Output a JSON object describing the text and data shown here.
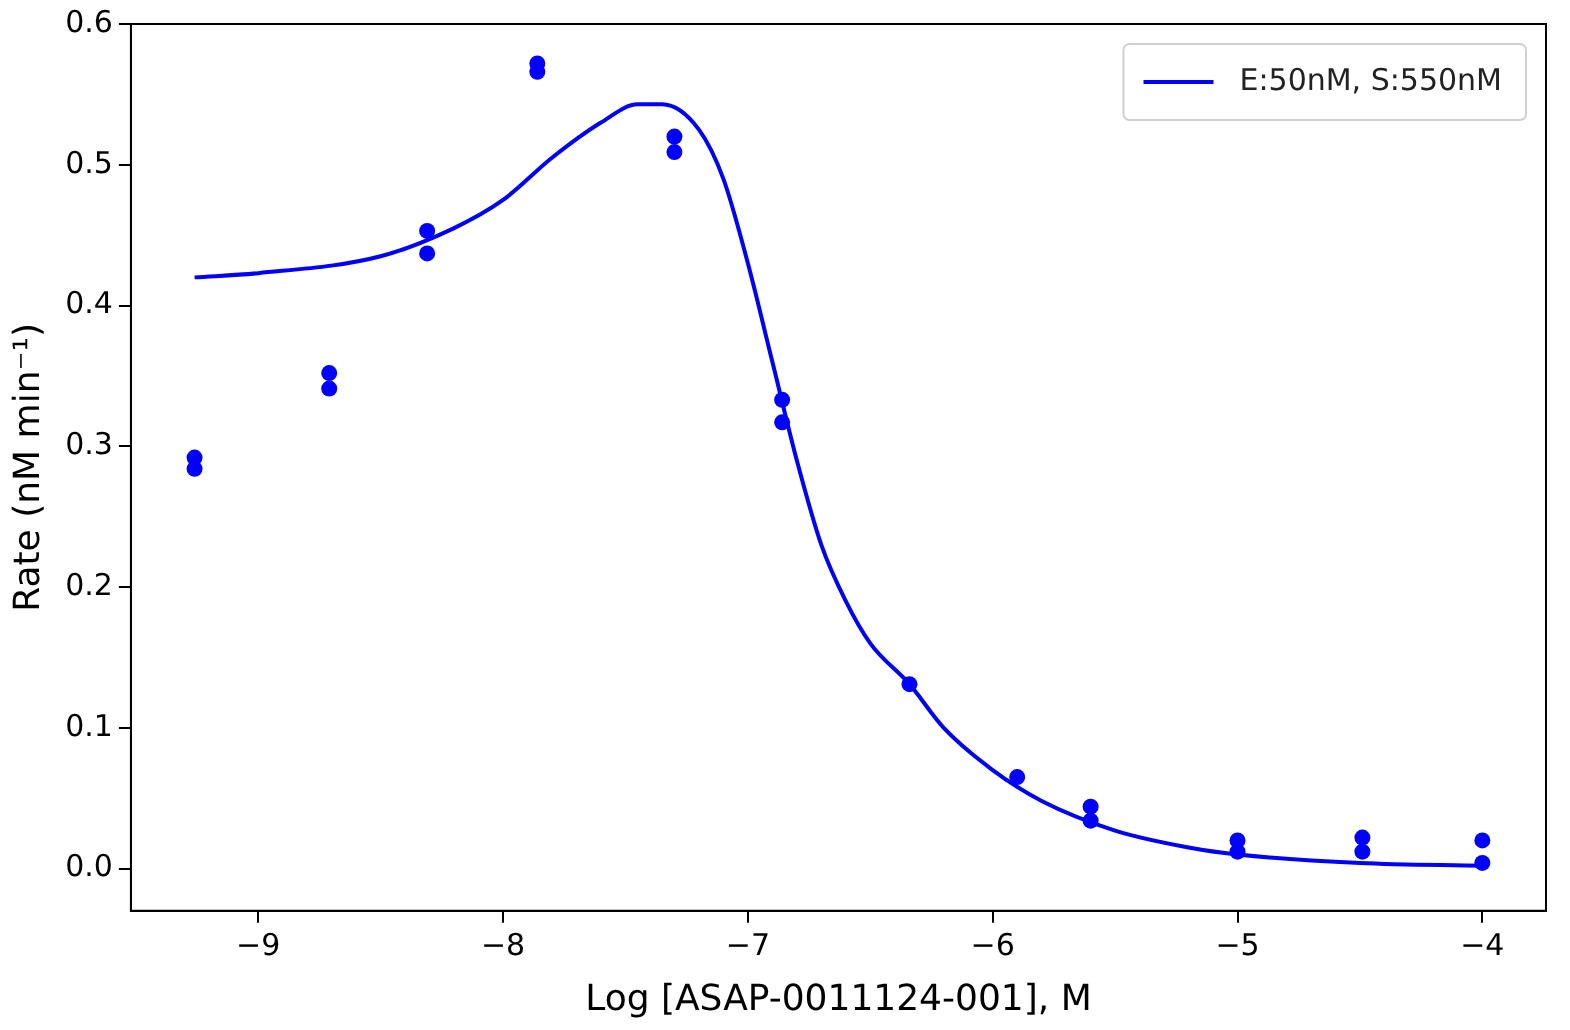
{
  "chart_data": {
    "type": "scatter",
    "xlabel": "Log [ASAP-0011124-001], M",
    "ylabel": "Rate (nM min⁻¹)",
    "xlim": [
      -9.52,
      -3.74
    ],
    "ylim": [
      -0.03,
      0.6
    ],
    "xticks": [
      {
        "value": -9,
        "label": "−9"
      },
      {
        "value": -8,
        "label": "−8"
      },
      {
        "value": -7,
        "label": "−7"
      },
      {
        "value": -6,
        "label": "−6"
      },
      {
        "value": -5,
        "label": "−5"
      },
      {
        "value": -4,
        "label": "−4"
      }
    ],
    "yticks": [
      {
        "value": 0,
        "label": "0.0"
      },
      0.1,
      0.2,
      0.3,
      0.4,
      0.5,
      0.6
    ],
    "grid": false,
    "legend": "top right",
    "marker": "circle",
    "series": [
      {
        "color": "#0000ff",
        "x": [
          -9.26,
          -9.26,
          -8.71,
          -8.71,
          -8.31,
          -8.31,
          -7.86,
          -7.86,
          -7.3,
          -7.3,
          -6.86,
          -6.86,
          -6.34,
          -5.9,
          -5.6,
          -5.6,
          -5.0,
          -5.0,
          -4.49,
          -4.49,
          -4.0,
          -4.0
        ],
        "values": [
          0.292,
          0.284,
          0.352,
          0.341,
          0.453,
          0.437,
          0.572,
          0.566,
          0.52,
          0.509,
          0.333,
          0.317,
          0.131,
          0.065,
          0.044,
          0.034,
          0.02,
          0.012,
          0.022,
          0.012,
          0.02,
          0.004
        ]
      },
      {
        "type": "line",
        "name": "E:50nM, S:550nM",
        "color": "#0000ff",
        "line_style": "solid",
        "marker": "none",
        "x": [
          -9.26,
          -9.0,
          -8.5,
          -8.2,
          -8.0,
          -7.8,
          -7.6,
          -7.45,
          -7.35,
          -7.2,
          -7.1,
          -7.0,
          -6.9,
          -6.8,
          -6.7,
          -6.6,
          -6.5,
          -6.34,
          -6.2,
          -6.0,
          -5.8,
          -5.5,
          -5.2,
          -5.0,
          -4.5,
          -4.0
        ],
        "values": [
          0.42,
          0.423,
          0.435,
          0.455,
          0.475,
          0.505,
          0.53,
          0.543,
          0.543,
          0.525,
          0.49,
          0.43,
          0.36,
          0.29,
          0.23,
          0.19,
          0.16,
          0.131,
          0.1,
          0.07,
          0.048,
          0.027,
          0.015,
          0.01,
          0.004,
          0.002
        ]
      }
    ]
  }
}
